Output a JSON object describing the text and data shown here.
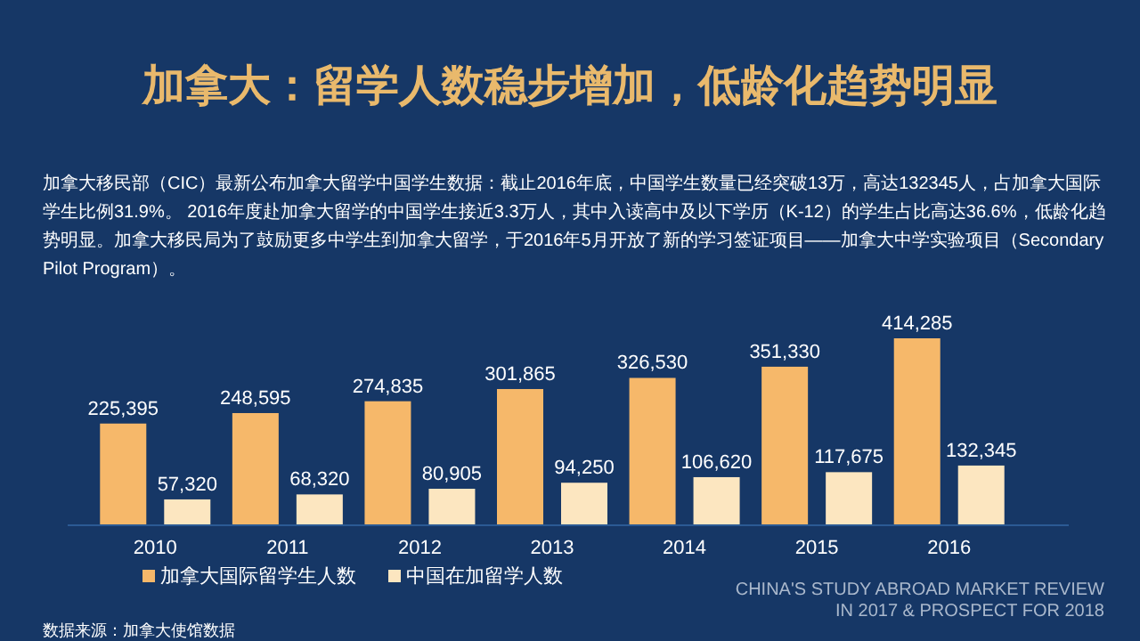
{
  "chart_data": {
    "type": "bar",
    "title": "加拿大：留学人数稳步增加，低龄化趋势明显",
    "categories": [
      "2010",
      "2011",
      "2012",
      "2013",
      "2014",
      "2015",
      "2016"
    ],
    "series": [
      {
        "name": "加拿大国际留学生人数",
        "color": "#f6b86a",
        "values": [
          225395,
          248595,
          274835,
          301865,
          326530,
          351330,
          414285
        ],
        "value_labels": [
          "225,395",
          "248,595",
          "274,835",
          "301,865",
          "326,530",
          "351,330",
          "414,285"
        ]
      },
      {
        "name": "中国在加留学人数",
        "color": "#fce6c0",
        "values": [
          57320,
          68320,
          80905,
          94250,
          106620,
          117675,
          132345
        ],
        "value_labels": [
          "57,320",
          "68,320",
          "80,905",
          "94,250",
          "106,620",
          "117,675",
          "132,345"
        ]
      }
    ],
    "legend": "bottom left",
    "annotations": [
      "加拿大移民部（CIC）最新公布加拿大留学中国学生数据：截止2016年底，中国学生数量已经突破13万，高达132345人，占加拿大国际学生比例31.9%。 2016年度赴加拿大留学的中国学生接近3.3万人，其中入读高中及以下学历（K-12）的学生占比高达36.6%，低龄化趋势明显。加拿大移民局为了鼓励更多中学生到加拿大留学，于2016年5月开放了新的学习签证项目——加拿大中学实验项目（Secondary Pilot Program）。",
      "CHINA'S STUDY ABROAD MARKET REVIEW IN 2017 & PROSPECT FOR 2018",
      "数据来源：加拿大使馆数据"
    ]
  }
}
